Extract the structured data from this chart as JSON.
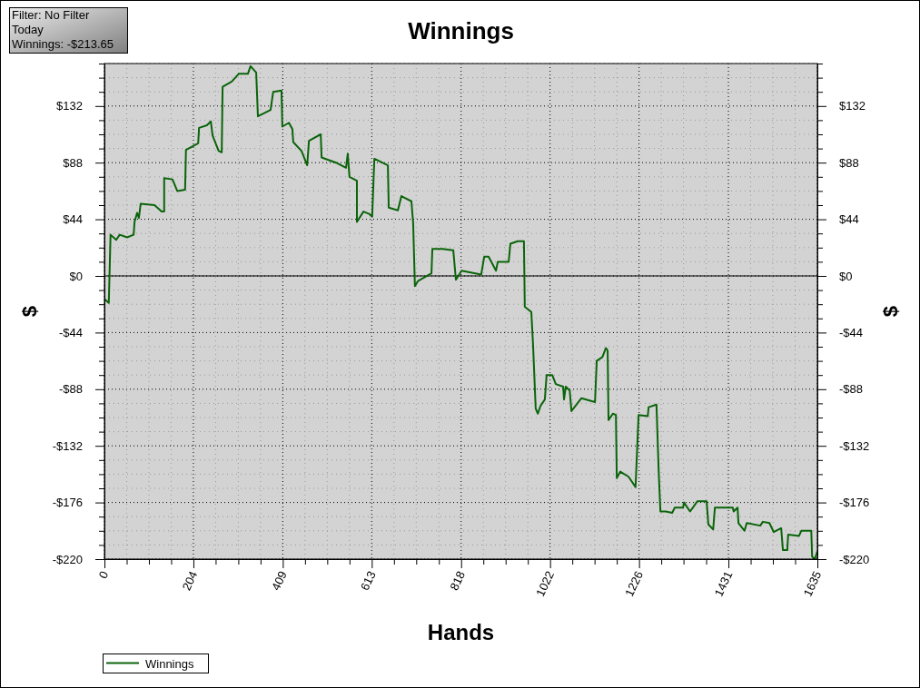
{
  "chart_data": {
    "type": "line",
    "title": "Winnings",
    "xlabel": "Hands",
    "ylabel": "$",
    "y2label": "$",
    "annotations": [
      "Filter: No Filter",
      "Today",
      "Winnings: -$213.65"
    ],
    "xlim": [
      0,
      1635
    ],
    "xticks": [
      0,
      {
        "value": 51,
        "label": null
      },
      {
        "value": 102,
        "label": null
      },
      {
        "value": 153,
        "label": null
      },
      204,
      {
        "value": 255,
        "label": null
      },
      {
        "value": 307,
        "label": null
      },
      {
        "value": 358,
        "label": null
      },
      409,
      {
        "value": 460,
        "label": null
      },
      {
        "value": 511,
        "label": null
      },
      {
        "value": 562,
        "label": null
      },
      613,
      {
        "value": 664,
        "label": null
      },
      {
        "value": 715,
        "label": null
      },
      {
        "value": 767,
        "label": null
      },
      818,
      {
        "value": 869,
        "label": null
      },
      {
        "value": 920,
        "label": null
      },
      {
        "value": 971,
        "label": null
      },
      1022,
      {
        "value": 1073,
        "label": null
      },
      {
        "value": 1124,
        "label": null
      },
      {
        "value": 1175,
        "label": null
      },
      1226,
      {
        "value": 1277,
        "label": null
      },
      {
        "value": 1328,
        "label": null
      },
      {
        "value": 1380,
        "label": null
      },
      1431,
      {
        "value": 1482,
        "label": null
      },
      {
        "value": 1533,
        "label": null
      },
      {
        "value": 1584,
        "label": null
      },
      1635
    ],
    "ylim": [
      -220,
      165
    ],
    "yticks": [
      {
        "value": -220,
        "label": "-$220"
      },
      {
        "value": -209,
        "label": null
      },
      {
        "value": -198,
        "label": null
      },
      {
        "value": -187,
        "label": null
      },
      {
        "value": -176,
        "label": "-$176"
      },
      {
        "value": -165,
        "label": null
      },
      {
        "value": -154,
        "label": null
      },
      {
        "value": -143,
        "label": null
      },
      {
        "value": -132,
        "label": "-$132"
      },
      {
        "value": -121,
        "label": null
      },
      {
        "value": -110,
        "label": null
      },
      {
        "value": -99,
        "label": null
      },
      {
        "value": -88,
        "label": "-$88"
      },
      {
        "value": -77,
        "label": null
      },
      {
        "value": -66,
        "label": null
      },
      {
        "value": -55,
        "label": null
      },
      {
        "value": -44,
        "label": "-$44"
      },
      {
        "value": -33,
        "label": null
      },
      {
        "value": -22,
        "label": null
      },
      {
        "value": -11,
        "label": null
      },
      {
        "value": 0,
        "label": "$0"
      },
      {
        "value": 11,
        "label": null
      },
      {
        "value": 22,
        "label": null
      },
      {
        "value": 33,
        "label": null
      },
      {
        "value": 44,
        "label": "$44"
      },
      {
        "value": 55,
        "label": null
      },
      {
        "value": 66,
        "label": null
      },
      {
        "value": 77,
        "label": null
      },
      {
        "value": 88,
        "label": "$88"
      },
      {
        "value": 99,
        "label": null
      },
      {
        "value": 110,
        "label": null
      },
      {
        "value": 121,
        "label": null
      },
      {
        "value": 132,
        "label": "$132"
      },
      {
        "value": 143,
        "label": null
      },
      {
        "value": 154,
        "label": null
      },
      {
        "value": 165,
        "label": null
      }
    ],
    "y2lim": [
      -220,
      165
    ],
    "y2ticks": [
      {
        "value": -220,
        "label": "-$220"
      },
      {
        "value": -209,
        "label": null
      },
      {
        "value": -198,
        "label": null
      },
      {
        "value": -187,
        "label": null
      },
      {
        "value": -176,
        "label": "-$176"
      },
      {
        "value": -165,
        "label": null
      },
      {
        "value": -154,
        "label": null
      },
      {
        "value": -143,
        "label": null
      },
      {
        "value": -132,
        "label": "-$132"
      },
      {
        "value": -121,
        "label": null
      },
      {
        "value": -110,
        "label": null
      },
      {
        "value": -99,
        "label": null
      },
      {
        "value": -88,
        "label": "-$88"
      },
      {
        "value": -77,
        "label": null
      },
      {
        "value": -66,
        "label": null
      },
      {
        "value": -55,
        "label": null
      },
      {
        "value": -44,
        "label": "-$44"
      },
      {
        "value": -33,
        "label": null
      },
      {
        "value": -22,
        "label": null
      },
      {
        "value": -11,
        "label": null
      },
      {
        "value": 0,
        "label": "$0"
      },
      {
        "value": 11,
        "label": null
      },
      {
        "value": 22,
        "label": null
      },
      {
        "value": 33,
        "label": null
      },
      {
        "value": 44,
        "label": "$44"
      },
      {
        "value": 55,
        "label": null
      },
      {
        "value": 66,
        "label": null
      },
      {
        "value": 77,
        "label": null
      },
      {
        "value": 88,
        "label": "$88"
      },
      {
        "value": 99,
        "label": null
      },
      {
        "value": 110,
        "label": null
      },
      {
        "value": 121,
        "label": null
      },
      {
        "value": 132,
        "label": "$132"
      },
      {
        "value": 143,
        "label": null
      },
      {
        "value": 154,
        "label": null
      },
      {
        "value": 165,
        "label": null
      }
    ],
    "grid": true,
    "legend": "bottom left",
    "ref_lines": [
      {
        "axis": "y",
        "value": 0,
        "label": null,
        "color": "#000000",
        "line_style": "solid"
      }
    ],
    "series": [
      {
        "name": "Winnings",
        "color": "#0a640a",
        "x": [
          0,
          10,
          14,
          27,
          35,
          52,
          67,
          69,
          75,
          79,
          83,
          115,
          131,
          137,
          137,
          156,
          167,
          185,
          187,
          215,
          217,
          235,
          244,
          248,
          262,
          269,
          271,
          292,
          308,
          329,
          335,
          348,
          352,
          381,
          387,
          406,
          408,
          423,
          431,
          433,
          452,
          465,
          469,
          496,
          498,
          531,
          554,
          558,
          562,
          579,
          579,
          594,
          608,
          614,
          619,
          650,
          652,
          673,
          681,
          704,
          708,
          712,
          719,
          750,
          752,
          775,
          800,
          806,
          819,
          864,
          871,
          881,
          898,
          902,
          927,
          931,
          948,
          962,
          964,
          979,
          983,
          989,
          994,
          1000,
          1010,
          1014,
          1027,
          1035,
          1052,
          1054,
          1058,
          1067,
          1071,
          1094,
          1125,
          1129,
          1142,
          1150,
          1154,
          1156,
          1166,
          1173,
          1175,
          1183,
          1202,
          1218,
          1225,
          1246,
          1248,
          1266,
          1271,
          1275,
          1287,
          1302,
          1308,
          1327,
          1329,
          1343,
          1360,
          1381,
          1385,
          1396,
          1400,
          1441,
          1443,
          1452,
          1454,
          1468,
          1473,
          1504,
          1510,
          1525,
          1535,
          1552,
          1556,
          1566,
          1568,
          1593,
          1598,
          1621,
          1623,
          1629,
          1635
        ],
        "values": [
          -18,
          -21,
          32,
          28,
          32,
          30,
          32,
          42,
          49,
          45,
          56,
          55,
          50,
          50,
          76,
          75,
          66,
          67,
          98,
          103,
          115,
          117,
          120,
          109,
          97,
          96,
          147,
          151,
          157,
          157,
          163,
          158,
          124,
          129,
          143,
          144,
          116,
          119,
          114,
          104,
          97,
          86,
          105,
          110,
          92,
          88,
          84,
          95,
          77,
          74,
          42,
          50,
          48,
          46,
          91,
          86,
          53,
          51,
          62,
          58,
          41,
          -8,
          -4,
          2,
          21,
          21,
          20,
          -3,
          4,
          1,
          15,
          15,
          4,
          11,
          11,
          25,
          27,
          27,
          -24,
          -28,
          -54,
          -103,
          -107,
          -101,
          -96,
          -77,
          -77,
          -84,
          -86,
          -96,
          -86,
          -89,
          -105,
          -95,
          -98,
          -66,
          -63,
          -56,
          -58,
          -112,
          -107,
          -108,
          -157,
          -152,
          -156,
          -164,
          -108,
          -109,
          -102,
          -100,
          -151,
          -183,
          -183,
          -184,
          -180,
          -180,
          -176,
          -183,
          -175,
          -175,
          -193,
          -197,
          -180,
          -180,
          -183,
          -180,
          -192,
          -198,
          -192,
          -194,
          -191,
          -192,
          -199,
          -196,
          -213,
          -213,
          -201,
          -202,
          -198,
          -198,
          -218,
          -220,
          -214
        ]
      }
    ]
  }
}
